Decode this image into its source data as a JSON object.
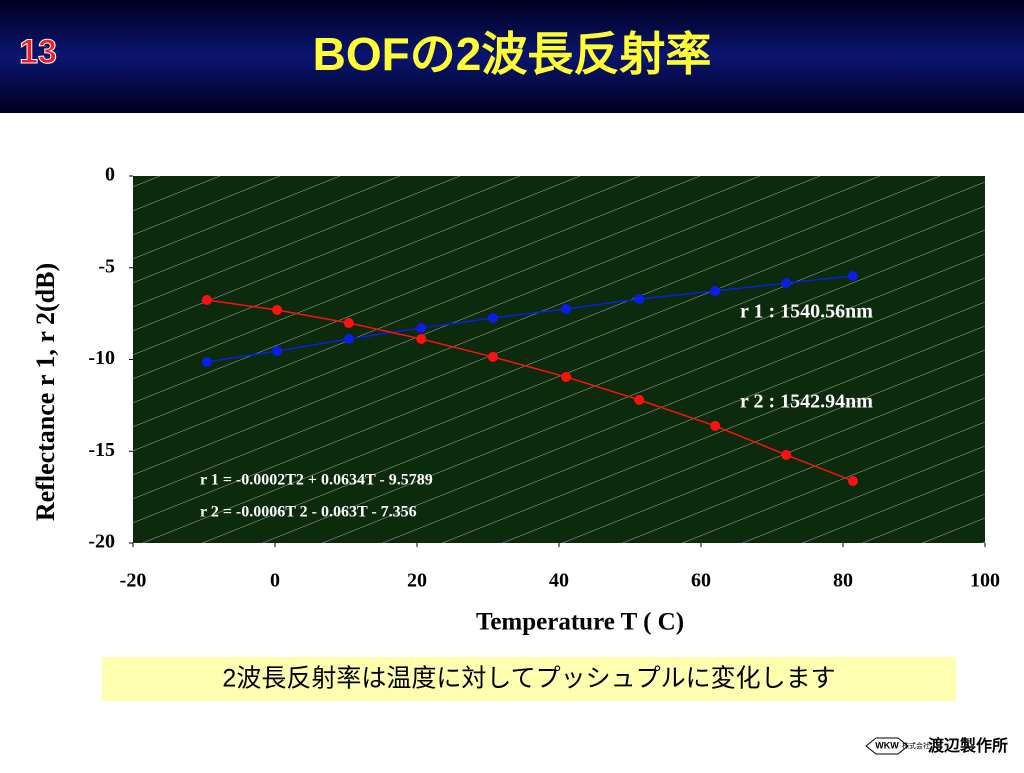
{
  "slide_number": "13",
  "title": "BOFの2波長反射率",
  "caption": "2波長反射率は温度に対してプッシュプルに変化します",
  "logo": {
    "mark": "WKW",
    "small": "株式会社",
    "name": "渡辺製作所"
  },
  "chart_data": {
    "type": "line",
    "xlabel": "Temperature  T  (  C)",
    "ylabel": "Reflectance r 1, r 2(dB)",
    "x": [
      -9.6,
      0.3,
      10.4,
      20.6,
      30.7,
      41,
      51.3,
      62,
      72,
      81.4
    ],
    "series": [
      {
        "name": "r 1 : 1540.56nm",
        "color": "#0a1ee6",
        "values": [
          -10.14,
          -9.54,
          -8.88,
          -8.28,
          -7.74,
          -7.25,
          -6.7,
          -6.27,
          -5.83,
          -5.45
        ]
      },
      {
        "name": "r 2 : 1542.94nm",
        "color": "#ff1010",
        "values": [
          -6.76,
          -7.3,
          -8.01,
          -8.88,
          -9.86,
          -10.95,
          -12.2,
          -13.62,
          -15.2,
          -16.62
        ]
      }
    ],
    "annotations": [
      "r 1 = -0.0002T2 + 0.0634T  - 9.5789",
      "r 2 = -0.0006T 2 - 0.063T - 7.356"
    ],
    "xlim": [
      -20,
      100
    ],
    "xticks": [
      -20,
      0,
      20,
      40,
      60,
      80,
      100
    ],
    "ylim": [
      -20,
      0
    ],
    "yticks": [
      0,
      -5,
      -10,
      -15,
      -20
    ]
  }
}
